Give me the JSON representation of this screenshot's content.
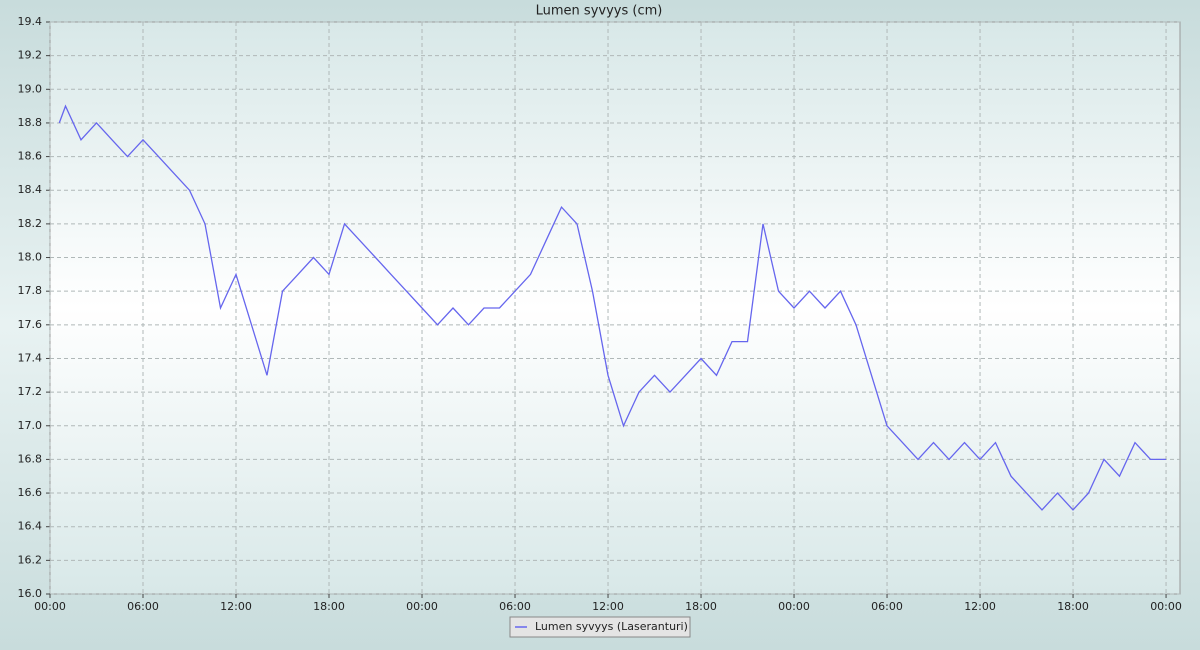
{
  "chart_data": {
    "type": "line",
    "title": "Lumen syvyys (cm)",
    "x": [
      0.6,
      1,
      2,
      3,
      4,
      5,
      6,
      7,
      8,
      9,
      10,
      11,
      12,
      13,
      14,
      15,
      16,
      17,
      18,
      19,
      20,
      21,
      22,
      23,
      24,
      25,
      26,
      27,
      28,
      29,
      30,
      31,
      32,
      33,
      34,
      35,
      36,
      37,
      38,
      39,
      40,
      41,
      42,
      43,
      44,
      45,
      46,
      47,
      48,
      49,
      50,
      51,
      52,
      53,
      54,
      55,
      56,
      57,
      58,
      59,
      60,
      61,
      62,
      63,
      64,
      65,
      66,
      67,
      68,
      69,
      70,
      71,
      72
    ],
    "series": [
      {
        "name": "Lumen syvyys (Laseranturi)",
        "color": "#6666ee",
        "values": [
          18.8,
          18.9,
          18.7,
          18.8,
          18.7,
          18.6,
          18.7,
          18.6,
          18.5,
          18.4,
          18.2,
          17.7,
          17.9,
          17.6,
          17.3,
          17.8,
          17.9,
          18.0,
          17.9,
          18.2,
          18.1,
          18.0,
          17.9,
          17.8,
          17.7,
          17.6,
          17.7,
          17.6,
          17.7,
          17.7,
          17.8,
          17.9,
          18.1,
          18.3,
          18.2,
          17.8,
          17.3,
          17.0,
          17.2,
          17.3,
          17.2,
          17.3,
          17.4,
          17.3,
          17.5,
          17.5,
          18.2,
          17.8,
          17.7,
          17.8,
          17.7,
          17.8,
          17.6,
          17.3,
          17.0,
          16.9,
          16.8,
          16.9,
          16.8,
          16.9,
          16.8,
          16.9,
          16.7,
          16.6,
          16.5,
          16.6,
          16.5,
          16.6,
          16.8,
          16.7,
          16.9,
          16.8,
          16.8
        ]
      }
    ],
    "xlim": [
      0,
      72.9
    ],
    "xticks": [
      {
        "value": 0,
        "label": "00:00"
      },
      {
        "value": 6,
        "label": "06:00"
      },
      {
        "value": 12,
        "label": "12:00"
      },
      {
        "value": 18,
        "label": "18:00"
      },
      {
        "value": 24,
        "label": "00:00"
      },
      {
        "value": 30,
        "label": "06:00"
      },
      {
        "value": 36,
        "label": "12:00"
      },
      {
        "value": 42,
        "label": "18:00"
      },
      {
        "value": 48,
        "label": "00:00"
      },
      {
        "value": 54,
        "label": "06:00"
      },
      {
        "value": 60,
        "label": "12:00"
      },
      {
        "value": 66,
        "label": "18:00"
      },
      {
        "value": 72,
        "label": "00:00"
      }
    ],
    "ylim": [
      16.0,
      19.4
    ],
    "yticks": [
      {
        "value": 16,
        "label": "16.0"
      },
      16.2,
      16.4,
      16.6,
      16.8,
      {
        "value": 17,
        "label": "17.0"
      },
      17.2,
      17.4,
      17.6,
      17.8,
      {
        "value": 18,
        "label": "18.0"
      },
      18.2,
      18.4,
      18.6,
      18.8,
      {
        "value": 19,
        "label": "19.0"
      },
      19.2,
      19.4
    ],
    "grid": true
  }
}
